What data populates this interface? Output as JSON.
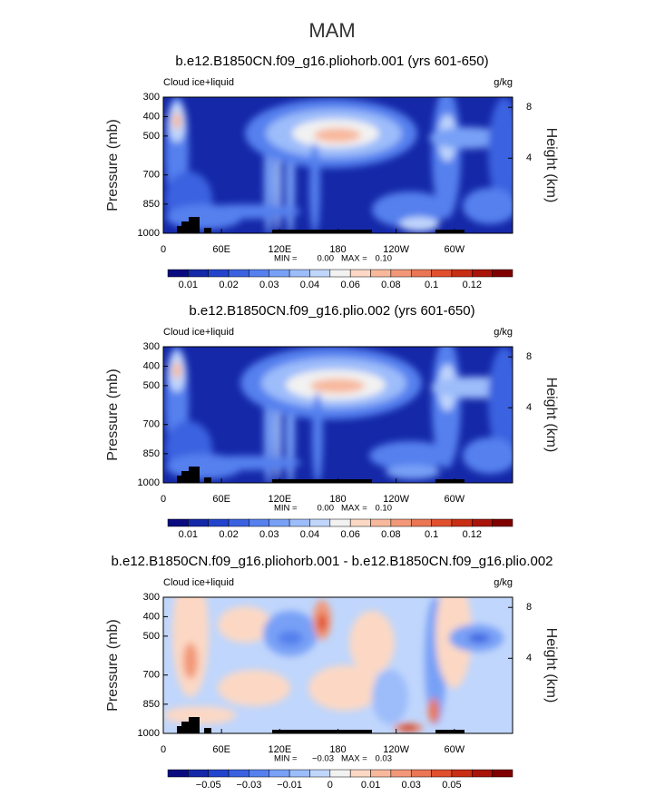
{
  "figure_title": "MAM",
  "chart_data": [
    {
      "type": "contour",
      "title": "b.e12.B1850CN.f09_g16.pliohorb.001 (yrs 601-650)",
      "left_label": "Cloud ice+liquid",
      "right_label": "g/kg",
      "ylabel": "Pressure (mb)",
      "y2label": "Height (km)",
      "xlim": [
        0,
        360
      ],
      "xticks": [
        0,
        {
          "value": 60,
          "label": "60E"
        },
        {
          "value": 120,
          "label": "120E"
        },
        180,
        {
          "value": 240,
          "label": "120W"
        },
        {
          "value": 300,
          "label": "60W"
        }
      ],
      "ylim": [
        1000,
        300
      ],
      "yticks": [
        300,
        400,
        500,
        700,
        850,
        1000
      ],
      "y2lim": [
        -1.9,
        8.8
      ],
      "y2ticks": [
        4,
        8
      ],
      "stats": {
        "min_label": "MIN =",
        "min": {
          "value": 0,
          "label": "0.00"
        },
        "max_label": "MAX =",
        "max": {
          "value": 0.1,
          "label": "0.10"
        }
      },
      "colorbar": {
        "colors": [
          "#0b0b80",
          "#1428a8",
          "#2244cc",
          "#3a62e0",
          "#5580ee",
          "#78a0f6",
          "#9cbcfa",
          "#c0d6fc",
          "#f2f2f2",
          "#fcd8c4",
          "#f8b89c",
          "#f29878",
          "#ea7654",
          "#e0502e",
          "#c82e14",
          "#a8140a",
          "#800000"
        ],
        "labels": [
          0.01,
          0.02,
          0.03,
          0.04,
          0.06,
          0.08,
          0.1,
          0.12
        ]
      }
    },
    {
      "type": "contour",
      "title": "b.e12.B1850CN.f09_g16.plio.002 (yrs 601-650)",
      "left_label": "Cloud ice+liquid",
      "right_label": "g/kg",
      "ylabel": "Pressure (mb)",
      "y2label": "Height (km)",
      "xlim": [
        0,
        360
      ],
      "xticks": [
        0,
        {
          "value": 60,
          "label": "60E"
        },
        {
          "value": 120,
          "label": "120E"
        },
        180,
        {
          "value": 240,
          "label": "120W"
        },
        {
          "value": 300,
          "label": "60W"
        }
      ],
      "ylim": [
        1000,
        300
      ],
      "yticks": [
        300,
        400,
        500,
        700,
        850,
        1000
      ],
      "y2lim": [
        -1.9,
        8.8
      ],
      "y2ticks": [
        4,
        8
      ],
      "stats": {
        "min_label": "MIN =",
        "min": {
          "value": 0,
          "label": "0.00"
        },
        "max_label": "MAX =",
        "max": {
          "value": 0.1,
          "label": "0.10"
        }
      },
      "colorbar": {
        "colors": [
          "#0b0b80",
          "#1428a8",
          "#2244cc",
          "#3a62e0",
          "#5580ee",
          "#78a0f6",
          "#9cbcfa",
          "#c0d6fc",
          "#f2f2f2",
          "#fcd8c4",
          "#f8b89c",
          "#f29878",
          "#ea7654",
          "#e0502e",
          "#c82e14",
          "#a8140a",
          "#800000"
        ],
        "labels": [
          0.01,
          0.02,
          0.03,
          0.04,
          0.06,
          0.08,
          0.1,
          0.12
        ]
      }
    },
    {
      "type": "contour",
      "title": "b.e12.B1850CN.f09_g16.pliohorb.001 - b.e12.B1850CN.f09_g16.plio.002",
      "left_label": "Cloud ice+liquid",
      "right_label": "g/kg",
      "ylabel": "Pressure (mb)",
      "y2label": "Height (km)",
      "xlim": [
        0,
        360
      ],
      "xticks": [
        0,
        {
          "value": 60,
          "label": "60E"
        },
        {
          "value": 120,
          "label": "120E"
        },
        180,
        {
          "value": 240,
          "label": "120W"
        },
        {
          "value": 300,
          "label": "60W"
        }
      ],
      "ylim": [
        1000,
        300
      ],
      "yticks": [
        300,
        400,
        500,
        700,
        850,
        1000
      ],
      "y2lim": [
        -1.9,
        8.8
      ],
      "y2ticks": [
        4,
        8
      ],
      "stats": {
        "min_label": "MIN =",
        "min": {
          "value": -0.03,
          "label": "−0.03"
        },
        "max_label": "MAX =",
        "max": 0.03
      },
      "colorbar": {
        "colors": [
          "#0b0b80",
          "#1428a8",
          "#2244cc",
          "#3a62e0",
          "#5580ee",
          "#78a0f6",
          "#9cbcfa",
          "#c0d6fc",
          "#f2f2f2",
          "#fcd8c4",
          "#f8b89c",
          "#f29878",
          "#ea7654",
          "#e0502e",
          "#c82e14",
          "#a8140a",
          "#800000"
        ],
        "labels": [
          {
            "value": -0.05,
            "label": "−0.05"
          },
          {
            "value": -0.03,
            "label": "−0.03"
          },
          {
            "value": -0.01,
            "label": "−0.01"
          },
          0,
          0.01,
          0.03,
          0.05
        ]
      }
    }
  ]
}
